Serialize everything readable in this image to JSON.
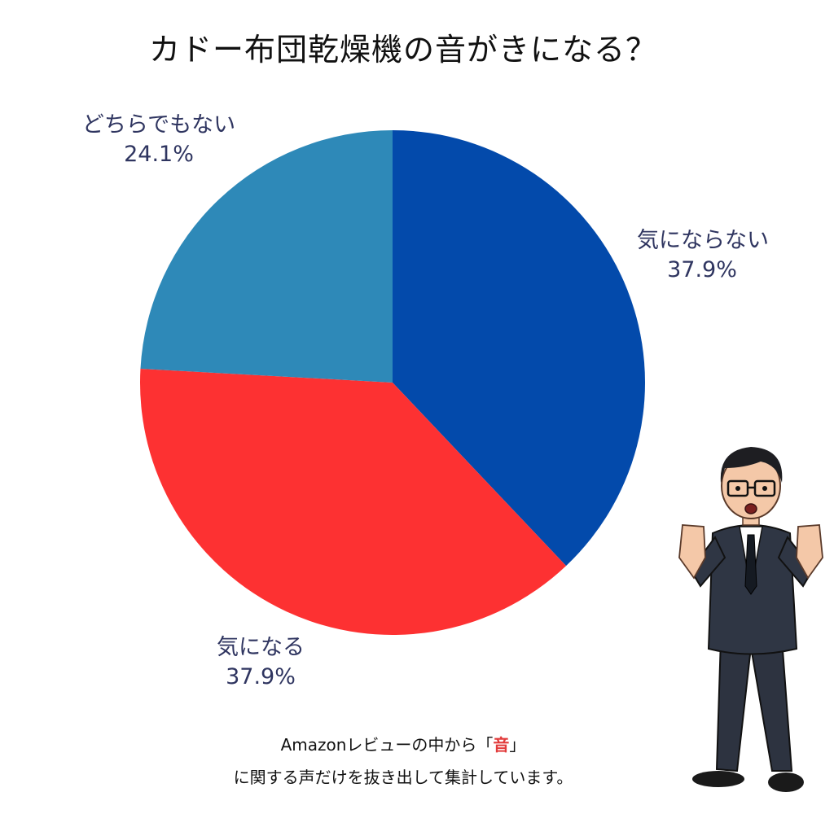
{
  "title": "カドー布団乾燥機の音がきになる？",
  "chart_data": {
    "type": "pie",
    "title": "カドー布団乾燥機の音がきになる？",
    "slices": [
      {
        "label": "気にならない",
        "value": 37.9,
        "value_label": "37.9%",
        "color": "#034aab"
      },
      {
        "label": "気になる",
        "value": 37.9,
        "value_label": "37.9%",
        "color": "#fd3132"
      },
      {
        "label": "どちらでもない",
        "value": 24.1,
        "value_label": "24.1%",
        "color": "#2e89b8"
      }
    ],
    "start": "12 o'clock",
    "direction": "clockwise"
  },
  "footnote": {
    "line1_prefix": "Amazonレビューの中から「",
    "line1_highlight": "音",
    "line1_suffix": "」",
    "line2": "に関する声だけを抜き出して集計しています。"
  },
  "illustration": {
    "icon": "surprised-businessman-illustration"
  }
}
